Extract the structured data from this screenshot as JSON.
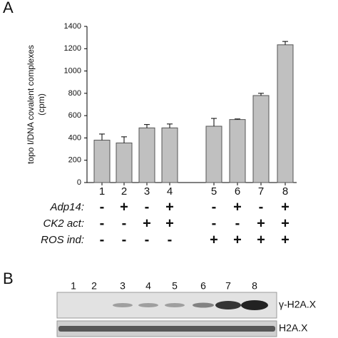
{
  "panel_labels": [
    "A",
    "B"
  ],
  "chart_data": {
    "type": "bar",
    "y_label": [
      "topo I/DNA covalent complexes",
      "(cpm)"
    ],
    "categories": [
      "1",
      "2",
      "3",
      "4",
      "5",
      "6",
      "7",
      "8"
    ],
    "values": [
      380,
      355,
      490,
      490,
      505,
      565,
      780,
      1235
    ],
    "errors": [
      55,
      55,
      30,
      35,
      70,
      5,
      20,
      30
    ],
    "color": "#c0c0c0",
    "ylim": [
      0,
      1400
    ],
    "yticks": [
      0,
      200,
      400,
      600,
      800,
      1000,
      1200,
      1400
    ],
    "conditions": [
      {
        "name": "Adp14:",
        "marks": [
          "-",
          "+",
          "-",
          "+",
          "-",
          "+",
          "-",
          "+"
        ]
      },
      {
        "name": "CK2 act:",
        "marks": [
          "-",
          "-",
          "+",
          "+",
          "-",
          "-",
          "+",
          "+"
        ]
      },
      {
        "name": "ROS ind:",
        "marks": [
          "-",
          "-",
          "-",
          "-",
          "+",
          "+",
          "+",
          "+"
        ]
      }
    ]
  },
  "blot": {
    "lanes": [
      "1",
      "2",
      "3",
      "4",
      "5",
      "6",
      "7",
      "8"
    ],
    "rows": [
      "γ-H2A.X",
      "H2A.X"
    ]
  }
}
